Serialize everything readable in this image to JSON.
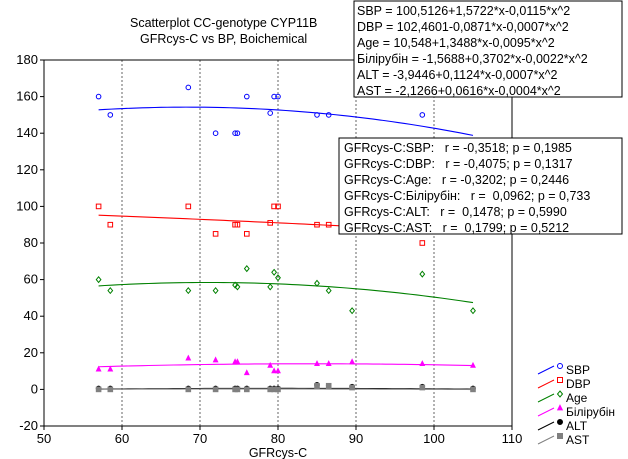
{
  "chart_data": {
    "type": "scatter",
    "title": [
      "Scatterplot CC-genotype CYP11B",
      "GFRcys-C vs BP, Boichemical"
    ],
    "xlabel": "GFRcys-C",
    "ylabel": "",
    "xlim": [
      50,
      110
    ],
    "ylim": [
      -20,
      180
    ],
    "xticks": [
      50,
      60,
      70,
      80,
      90,
      100,
      110
    ],
    "yticks": [
      -20,
      0,
      20,
      40,
      60,
      80,
      100,
      120,
      140,
      160,
      180
    ],
    "grid": "vertical-dashed",
    "legend_position": "right-bottom",
    "fit_x_range": [
      57,
      105
    ],
    "series": [
      {
        "name": "SBP",
        "color": "#0000ff",
        "marker": "circle",
        "fit": [
          100.5126,
          1.5722,
          -0.0115
        ],
        "points": [
          [
            57,
            160
          ],
          [
            58.5,
            150
          ],
          [
            68.5,
            165
          ],
          [
            72,
            140
          ],
          [
            74.5,
            140
          ],
          [
            74.8,
            140
          ],
          [
            76,
            160
          ],
          [
            79,
            151
          ],
          [
            79.5,
            160
          ],
          [
            80,
            160
          ],
          [
            85,
            150
          ],
          [
            86.5,
            150
          ],
          [
            98.5,
            150
          ]
        ]
      },
      {
        "name": "DBP",
        "color": "#ff0000",
        "marker": "square",
        "fit": [
          102.4601,
          -0.0871,
          -0.0007
        ],
        "points": [
          [
            57,
            100
          ],
          [
            58.5,
            90
          ],
          [
            68.5,
            100
          ],
          [
            72,
            85
          ],
          [
            74.5,
            90
          ],
          [
            74.8,
            90
          ],
          [
            76,
            85
          ],
          [
            79,
            91
          ],
          [
            79.5,
            100
          ],
          [
            80,
            100
          ],
          [
            85,
            90
          ],
          [
            86.5,
            90
          ],
          [
            98.5,
            80
          ]
        ]
      },
      {
        "name": "Age",
        "color": "#008000",
        "marker": "diamond",
        "fit": [
          10.548,
          1.3488,
          -0.0095
        ],
        "points": [
          [
            57,
            60
          ],
          [
            58.5,
            54
          ],
          [
            68.5,
            54
          ],
          [
            72,
            54
          ],
          [
            74.5,
            57
          ],
          [
            74.8,
            56
          ],
          [
            76,
            66
          ],
          [
            79,
            56
          ],
          [
            79.5,
            64
          ],
          [
            80,
            61
          ],
          [
            85,
            58
          ],
          [
            86.5,
            54
          ],
          [
            89.5,
            43
          ],
          [
            98.5,
            63
          ],
          [
            105,
            43
          ]
        ]
      },
      {
        "name": "Білірубін",
        "color": "#ff00ff",
        "marker": "triangle",
        "fit": [
          -1.5688,
          0.3702,
          -0.0022
        ],
        "points": [
          [
            57,
            11
          ],
          [
            58.5,
            11
          ],
          [
            68.5,
            17
          ],
          [
            72,
            16
          ],
          [
            74.5,
            15
          ],
          [
            74.8,
            15
          ],
          [
            76,
            9
          ],
          [
            79,
            13
          ],
          [
            79.5,
            10
          ],
          [
            80,
            10
          ],
          [
            85,
            14
          ],
          [
            86.5,
            14
          ],
          [
            89.5,
            15
          ],
          [
            98.5,
            14
          ],
          [
            105,
            13
          ]
        ]
      },
      {
        "name": "ALT",
        "color": "#000000",
        "marker": "filled-circle",
        "fit": [
          -3.9446,
          0.1124,
          -0.0007
        ],
        "points": [
          [
            57,
            0.5
          ],
          [
            58.5,
            0.5
          ],
          [
            68.5,
            0.5
          ],
          [
            72,
            0.5
          ],
          [
            74.5,
            0.5
          ],
          [
            74.8,
            0.5
          ],
          [
            76,
            0.5
          ],
          [
            79,
            0.5
          ],
          [
            79.5,
            0.5
          ],
          [
            80,
            0.5
          ],
          [
            85,
            2.5
          ],
          [
            86.5,
            2
          ],
          [
            89.5,
            1.5
          ],
          [
            98.5,
            1.5
          ],
          [
            105,
            0.5
          ]
        ]
      },
      {
        "name": "AST",
        "color": "#808080",
        "marker": "filled-square",
        "fit": [
          -2.1266,
          0.0616,
          -0.0004
        ],
        "points": [
          [
            57,
            0
          ],
          [
            58.5,
            0
          ],
          [
            68.5,
            0
          ],
          [
            72,
            0
          ],
          [
            74.5,
            0
          ],
          [
            74.8,
            0
          ],
          [
            76,
            0
          ],
          [
            79,
            0
          ],
          [
            79.5,
            0
          ],
          [
            80,
            0
          ],
          [
            85,
            2
          ],
          [
            86.5,
            2
          ],
          [
            89.5,
            1
          ],
          [
            98.5,
            1
          ],
          [
            105,
            0
          ]
        ]
      }
    ],
    "equations": [
      "SBP = 100,5126+1,5722*x-0,0115*x^2",
      "DBP = 102,4601-0,0871*x-0,0007*x^2",
      "Age = 10,548+1,3488*x-0,0095*x^2",
      "Білірубін = -1,5688+0,3702*x-0,0022*x^2",
      "ALT = -3,9446+0,1124*x-0,0007*x^2",
      "AST = -2,1266+0,0616*x-0,0004*x^2"
    ],
    "correlations": [
      "GFRcys-C:SBP:   r = -0,3518; p = 0,1985",
      "GFRcys-C:DBP:   r = -0,4075; p = 0,1317",
      "GFRcys-C:Age:   r = -0,3202; p = 0,2446",
      "GFRcys-C:Білірубін:   r =  0,0962; p = 0,733",
      "GFRcys-C:ALT:   r =  0,1478; p = 0,5990",
      "GFRcys-C:AST:   r =  0,1799; p = 0,5212"
    ]
  }
}
